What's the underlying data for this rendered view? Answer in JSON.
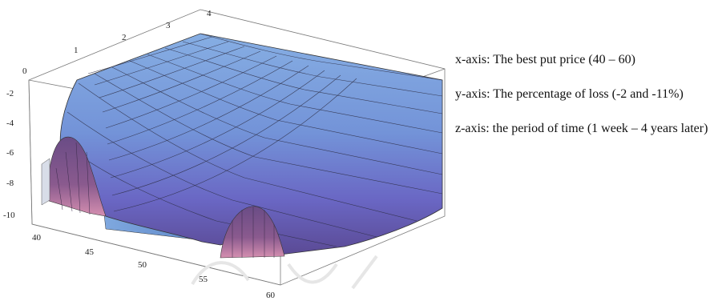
{
  "chart_data": {
    "type": "surface",
    "title": "",
    "x_ticks": [
      "40",
      "45",
      "50",
      "55",
      "60"
    ],
    "y_ticks": [
      "-2",
      "-4",
      "-6",
      "-8",
      "-10"
    ],
    "z_ticks": [
      "0",
      "1",
      "2",
      "3",
      "4"
    ],
    "xlim": [
      40,
      60
    ],
    "ylim": [
      -11,
      0
    ],
    "zlim": [
      0,
      4
    ],
    "colors": {
      "surface_light": "#7da3dc",
      "surface_mid": "#6f6fc8",
      "surface_dark": "#5a3f86",
      "grid": "#333333"
    }
  },
  "captions": {
    "x_axis": "x-axis: The best put price (40 – 60)",
    "y_axis": "y-axis: The percentage of loss (-2 and -11%)",
    "z_axis": "z-axis: the period of time (1 week – 4 years later)"
  }
}
